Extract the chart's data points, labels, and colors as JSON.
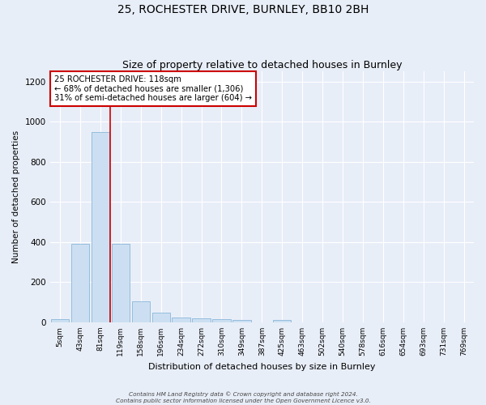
{
  "title1": "25, ROCHESTER DRIVE, BURNLEY, BB10 2BH",
  "title2": "Size of property relative to detached houses in Burnley",
  "xlabel": "Distribution of detached houses by size in Burnley",
  "ylabel": "Number of detached properties",
  "bar_labels": [
    "5sqm",
    "43sqm",
    "81sqm",
    "119sqm",
    "158sqm",
    "196sqm",
    "234sqm",
    "272sqm",
    "310sqm",
    "349sqm",
    "387sqm",
    "425sqm",
    "463sqm",
    "502sqm",
    "540sqm",
    "578sqm",
    "616sqm",
    "654sqm",
    "693sqm",
    "731sqm",
    "769sqm"
  ],
  "bar_values": [
    15,
    390,
    950,
    390,
    105,
    50,
    25,
    20,
    15,
    10,
    0,
    10,
    0,
    0,
    0,
    0,
    0,
    0,
    0,
    0,
    0
  ],
  "bar_color": "#ccdff2",
  "bar_edge_color": "#7aadd4",
  "property_line_x": 2.5,
  "annotation_text1": "25 ROCHESTER DRIVE: 118sqm",
  "annotation_text2": "← 68% of detached houses are smaller (1,306)",
  "annotation_text3": "31% of semi-detached houses are larger (604) →",
  "annotation_box_color": "#ffffff",
  "annotation_border_color": "#cc0000",
  "ylim": [
    0,
    1250
  ],
  "yticks": [
    0,
    200,
    400,
    600,
    800,
    1000,
    1200
  ],
  "footer1": "Contains HM Land Registry data © Crown copyright and database right 2024.",
  "footer2": "Contains public sector information licensed under the Open Government Licence v3.0.",
  "bg_color": "#e8eef8",
  "fig_bg_color": "#e8eef8",
  "grid_color": "#ffffff",
  "title1_fontsize": 10,
  "title2_fontsize": 9
}
